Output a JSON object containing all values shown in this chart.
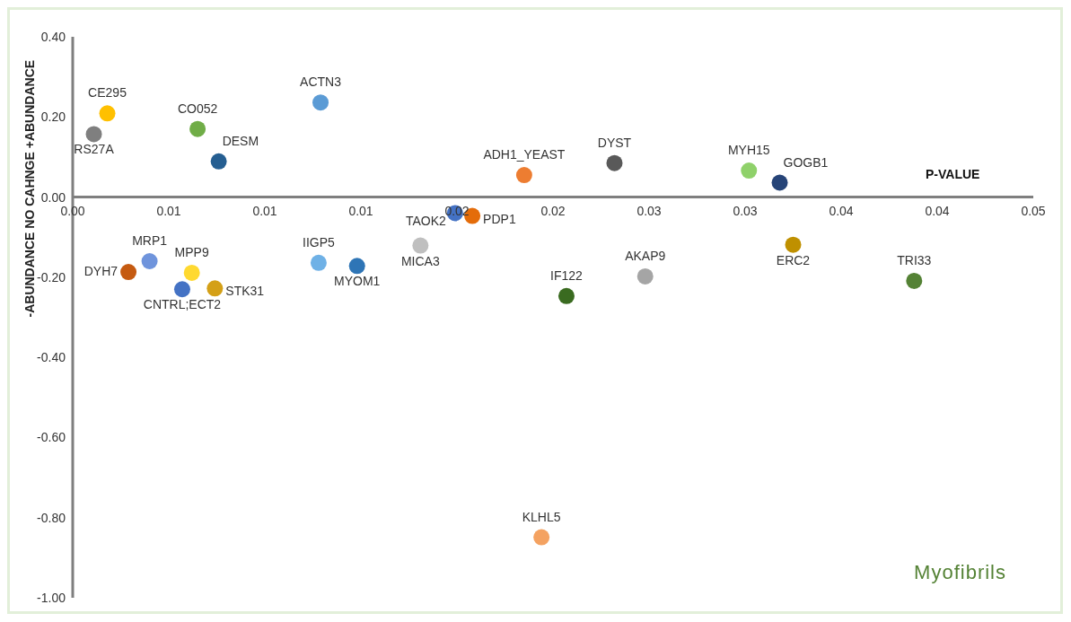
{
  "chart_data": {
    "type": "scatter",
    "ylabel": "-ABUNDANCE    NO CAHNGE   +ABUNDANCE",
    "xlabel": "P-VALUE",
    "annotations": [
      "Myofibrils"
    ],
    "xlim": [
      0,
      0.05
    ],
    "xticks": [
      {
        "value": 0,
        "label": "0.00"
      },
      {
        "value": 0.005,
        "label": "0.01"
      },
      {
        "value": 0.01,
        "label": "0.01"
      },
      {
        "value": 0.015,
        "label": "0.01"
      },
      {
        "value": 0.02,
        "label": "0.02"
      },
      {
        "value": 0.025,
        "label": "0.02"
      },
      {
        "value": 0.03,
        "label": "0.03"
      },
      {
        "value": 0.035,
        "label": "0.03"
      },
      {
        "value": 0.04,
        "label": "0.04"
      },
      {
        "value": 0.045,
        "label": "0.04"
      },
      {
        "value": 0.05,
        "label": "0.05"
      }
    ],
    "ylim": [
      -1,
      0.4
    ],
    "yticks": [
      {
        "value": 0.4,
        "label": "0.40"
      },
      {
        "value": 0.2,
        "label": "0.20"
      },
      {
        "value": 0,
        "label": "0.00"
      },
      {
        "value": -0.2,
        "label": "-0.20"
      },
      {
        "value": -0.4,
        "label": "-0.40"
      },
      {
        "value": -0.6,
        "label": "-0.60"
      },
      {
        "value": -0.8,
        "label": "-0.80"
      },
      {
        "value": -1,
        "label": "-1.00"
      }
    ],
    "grid": false,
    "legend": false,
    "marker": "circle",
    "series": [
      {
        "name": "RS27A",
        "color": "#7f7f7f",
        "x": [
          0.0011
        ],
        "values": [
          0.157
        ]
      },
      {
        "name": "CE295",
        "color": "#ffc000",
        "x": [
          0.0018
        ],
        "values": [
          0.209
        ]
      },
      {
        "name": "CO052",
        "color": "#70ad47",
        "x": [
          0.0065
        ],
        "values": [
          0.17
        ]
      },
      {
        "name": "DESM",
        "color": "#255e91",
        "x": [
          0.0076
        ],
        "values": [
          0.089
        ]
      },
      {
        "name": "ACTN3",
        "color": "#5b9bd5",
        "x": [
          0.0129
        ],
        "values": [
          0.236
        ]
      },
      {
        "name": "ADH1_YEAST",
        "color": "#ed7d31",
        "x": [
          0.0235
        ],
        "values": [
          0.055
        ]
      },
      {
        "name": "DYST",
        "color": "#595959",
        "x": [
          0.0282
        ],
        "values": [
          0.085
        ]
      },
      {
        "name": "MYH15",
        "color": "#8fd16a",
        "x": [
          0.0352
        ],
        "values": [
          0.066
        ]
      },
      {
        "name": "GOGB1",
        "color": "#264478",
        "x": [
          0.0368
        ],
        "values": [
          0.036
        ]
      },
      {
        "name": "TAOK2",
        "color": "#4472c4",
        "x": [
          0.0199
        ],
        "values": [
          -0.04
        ]
      },
      {
        "name": "PDP1",
        "color": "#e46c0a",
        "x": [
          0.0208
        ],
        "values": [
          -0.047
        ]
      },
      {
        "name": "MICA3",
        "color": "#bfbfbf",
        "x": [
          0.0181
        ],
        "values": [
          -0.121
        ]
      },
      {
        "name": "MRP1",
        "color": "#6f94dc",
        "x": [
          0.004
        ],
        "values": [
          -0.16
        ]
      },
      {
        "name": "MPP9",
        "color": "#ffd930",
        "x": [
          0.0062
        ],
        "values": [
          -0.189
        ]
      },
      {
        "name": "DYH7",
        "color": "#c55a11",
        "x": [
          0.0029
        ],
        "values": [
          -0.187
        ]
      },
      {
        "name": "CNTRL;ECT2",
        "color": "#4472c4",
        "x": [
          0.0057
        ],
        "values": [
          -0.23
        ]
      },
      {
        "name": "STK31",
        "color": "#d4a017",
        "x": [
          0.0074
        ],
        "values": [
          -0.228
        ]
      },
      {
        "name": "IIGP5",
        "color": "#6fb1e6",
        "x": [
          0.0128
        ],
        "values": [
          -0.164
        ]
      },
      {
        "name": "MYOM1",
        "color": "#2e75b6",
        "x": [
          0.0148
        ],
        "values": [
          -0.172
        ]
      },
      {
        "name": "IF122",
        "color": "#3a6b20",
        "x": [
          0.0257
        ],
        "values": [
          -0.247
        ]
      },
      {
        "name": "AKAP9",
        "color": "#a5a5a5",
        "x": [
          0.0298
        ],
        "values": [
          -0.198
        ]
      },
      {
        "name": "ERC2",
        "color": "#bf9000",
        "x": [
          0.0375
        ],
        "values": [
          -0.119
        ]
      },
      {
        "name": "TRI33",
        "color": "#548235",
        "x": [
          0.0438
        ],
        "values": [
          -0.209
        ]
      },
      {
        "name": "KLHL5",
        "color": "#f4a261",
        "x": [
          0.0244
        ],
        "values": [
          -0.849
        ]
      }
    ]
  }
}
